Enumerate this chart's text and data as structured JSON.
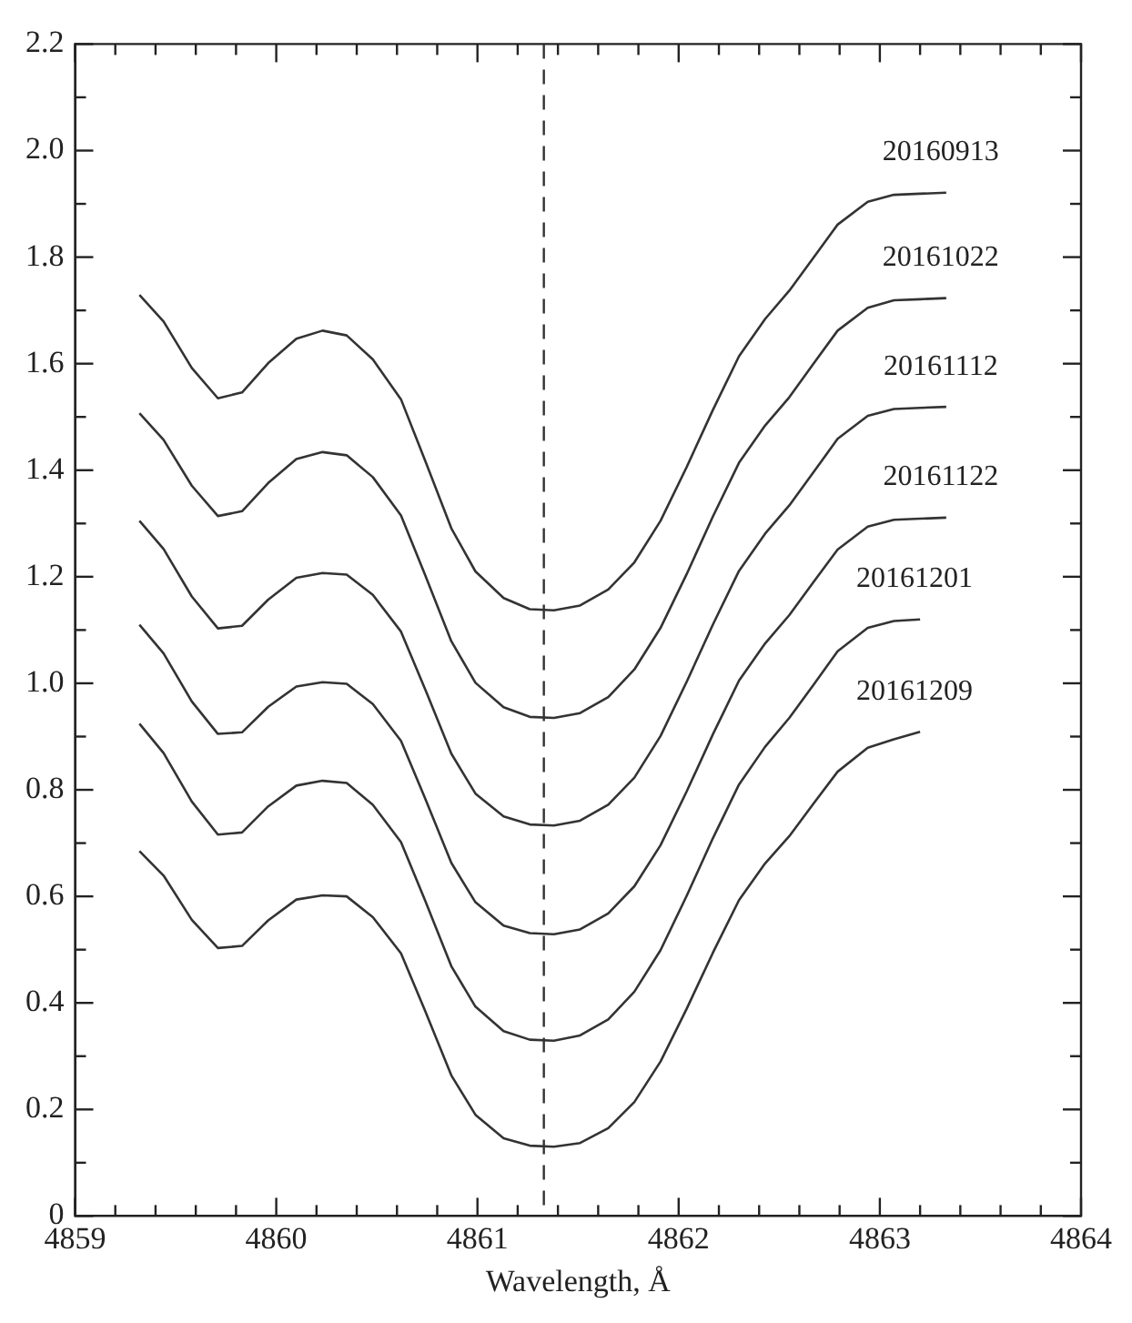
{
  "chart_data": {
    "type": "line",
    "xlabel": "Wavelength, Å",
    "xlim": [
      4859,
      4864
    ],
    "xticks": [
      4859,
      4860,
      4861,
      4862,
      4863,
      4864
    ],
    "ylim": [
      0,
      2.2
    ],
    "yticks": [
      {
        "value": 0,
        "label": "0"
      },
      {
        "value": 0.2,
        "label": "0.2"
      },
      {
        "value": 0.4,
        "label": "0.4"
      },
      {
        "value": 0.6,
        "label": "0.6"
      },
      {
        "value": 0.8,
        "label": "0.8"
      },
      {
        "value": 1,
        "label": "1.0"
      },
      {
        "value": 1.2,
        "label": "1.2"
      },
      {
        "value": 1.4,
        "label": "1.4"
      },
      {
        "value": 1.6,
        "label": "1.6"
      },
      {
        "value": 1.8,
        "label": "1.8"
      },
      {
        "value": 2,
        "label": "2.0"
      },
      {
        "value": 2.2,
        "label": "2.2"
      }
    ],
    "grid": false,
    "legend": false,
    "marker": "none",
    "line_style": "solid",
    "x": [
      4859.32,
      4859.44,
      4859.58,
      4859.71,
      4859.83,
      4859.96,
      4860.1,
      4860.23,
      4860.35,
      4860.48,
      4860.62,
      4860.74,
      4860.87,
      4860.99,
      4861.13,
      4861.26,
      4861.38,
      4861.51,
      4861.65,
      4861.78,
      4861.91,
      4862.04,
      4862.17,
      4862.3,
      4862.43,
      4862.55,
      4862.67,
      4862.79,
      4862.94,
      4863.07,
      4863.2,
      4863.33
    ],
    "series": [
      {
        "name": "20160913",
        "color": "#333333",
        "values": [
          1.729,
          1.679,
          1.592,
          1.535,
          1.546,
          1.601,
          1.647,
          1.662,
          1.653,
          1.608,
          1.533,
          1.418,
          1.291,
          1.21,
          1.16,
          1.139,
          1.137,
          1.146,
          1.176,
          1.227,
          1.305,
          1.406,
          1.513,
          1.614,
          1.684,
          1.737,
          1.799,
          1.861,
          1.904,
          1.917,
          1.919,
          1.921
        ]
      },
      {
        "name": "20161022",
        "color": "#333333",
        "values": [
          1.507,
          1.457,
          1.371,
          1.314,
          1.323,
          1.376,
          1.421,
          1.434,
          1.428,
          1.387,
          1.315,
          1.203,
          1.079,
          1.001,
          0.955,
          0.937,
          0.935,
          0.944,
          0.974,
          1.026,
          1.104,
          1.205,
          1.313,
          1.414,
          1.484,
          1.537,
          1.6,
          1.662,
          1.705,
          1.719,
          1.721,
          1.723
        ]
      },
      {
        "name": "20161112",
        "color": "#333333",
        "values": [
          1.305,
          1.252,
          1.163,
          1.103,
          1.108,
          1.157,
          1.198,
          1.207,
          1.204,
          1.166,
          1.097,
          0.989,
          0.868,
          0.793,
          0.75,
          0.735,
          0.733,
          0.742,
          0.772,
          0.823,
          0.901,
          1.003,
          1.11,
          1.211,
          1.281,
          1.334,
          1.396,
          1.459,
          1.502,
          1.515,
          1.517,
          1.519
        ]
      },
      {
        "name": "20161122",
        "color": "#333333",
        "values": [
          1.11,
          1.056,
          0.966,
          0.905,
          0.908,
          0.956,
          0.994,
          1.002,
          0.999,
          0.961,
          0.892,
          0.784,
          0.663,
          0.589,
          0.545,
          0.531,
          0.529,
          0.538,
          0.568,
          0.619,
          0.696,
          0.797,
          0.904,
          1.005,
          1.075,
          1.128,
          1.19,
          1.251,
          1.294,
          1.307,
          1.309,
          1.311
        ]
      },
      {
        "name": "20161201",
        "color": "#333333",
        "values": [
          0.924,
          0.869,
          0.778,
          0.716,
          0.72,
          0.769,
          0.808,
          0.817,
          0.813,
          0.772,
          0.702,
          0.592,
          0.469,
          0.393,
          0.347,
          0.331,
          0.329,
          0.339,
          0.369,
          0.421,
          0.499,
          0.601,
          0.709,
          0.81,
          0.881,
          0.935,
          0.997,
          1.06,
          1.104,
          1.117,
          1.12,
          null
        ]
      },
      {
        "name": "20161209",
        "color": "#333333",
        "values": [
          0.685,
          0.639,
          0.556,
          0.503,
          0.507,
          0.555,
          0.594,
          0.602,
          0.6,
          0.561,
          0.493,
          0.385,
          0.264,
          0.19,
          0.146,
          0.132,
          0.13,
          0.137,
          0.165,
          0.214,
          0.29,
          0.389,
          0.494,
          0.593,
          0.662,
          0.713,
          0.774,
          0.834,
          0.879,
          0.895,
          0.909,
          null
        ]
      }
    ],
    "ref_lines": [
      {
        "axis": "x",
        "value": 4861.33,
        "color": "#333333",
        "line_style": "dashed"
      }
    ]
  }
}
